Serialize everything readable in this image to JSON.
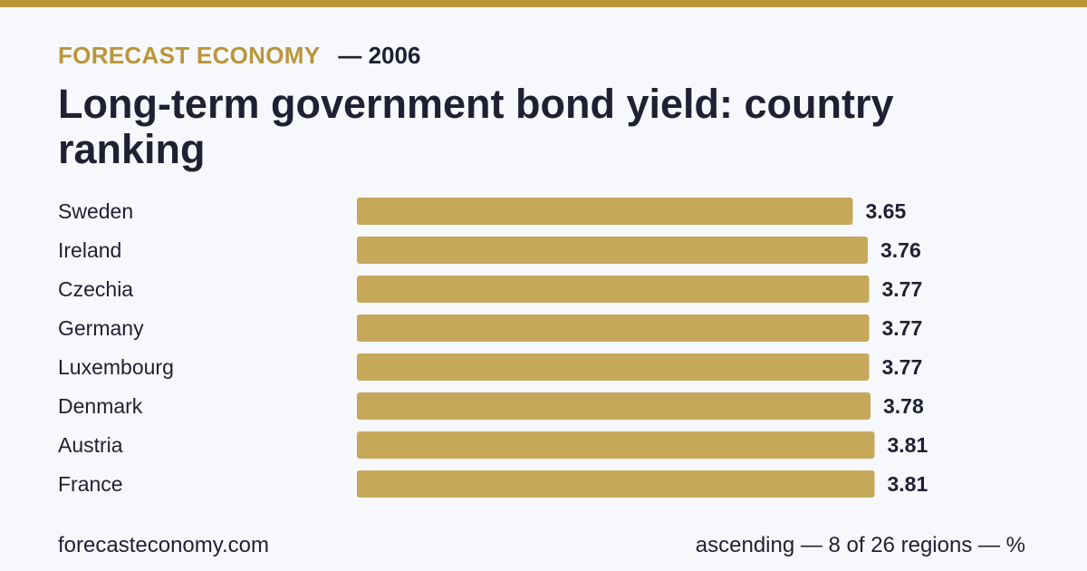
{
  "header": {
    "brand": "FORECAST ECONOMY",
    "year_label": "— 2006",
    "title": "Long-term government bond yield: country ranking"
  },
  "colors": {
    "accent": "#b9963a",
    "bar": "#c6a85b",
    "text": "#1f2033",
    "background": "#f7f8fc"
  },
  "chart_data": {
    "type": "bar",
    "orientation": "horizontal",
    "title": "Long-term government bond yield: country ranking",
    "xlabel": "",
    "ylabel": "",
    "categories": [
      "Sweden",
      "Ireland",
      "Czechia",
      "Germany",
      "Luxembourg",
      "Denmark",
      "Austria",
      "France"
    ],
    "values": [
      3.65,
      3.76,
      3.77,
      3.77,
      3.77,
      3.78,
      3.81,
      3.81
    ],
    "value_labels": [
      "3.65",
      "3.76",
      "3.77",
      "3.77",
      "3.77",
      "3.78",
      "3.81",
      "3.81"
    ],
    "grid": false,
    "legend": "none"
  },
  "footer": {
    "source": "forecasteconomy.com",
    "note": "ascending — 8 of 26 regions — %"
  }
}
